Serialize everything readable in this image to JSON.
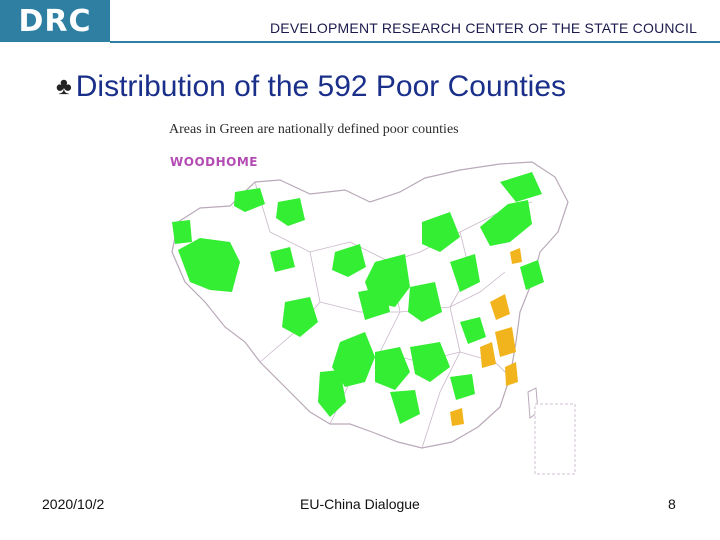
{
  "header": {
    "logo": "DRC",
    "organization": "DEVELOPMENT RESEARCH CENTER OF THE STATE COUNCIL"
  },
  "slide": {
    "bullet_icon": "clover-bullet-icon",
    "title": "Distribution of the 592 Poor Counties",
    "caption": "Areas in Green are nationally defined poor counties",
    "map_brand": "WOODHOME",
    "colors": {
      "title": "#1a2f8a",
      "poor_county_green": "#33ee33",
      "highlight_orange": "#f2b41c",
      "header_blue": "#2f7fa3"
    }
  },
  "footer": {
    "date": "2020/10/2",
    "center": "EU-China Dialogue",
    "page": "8"
  }
}
